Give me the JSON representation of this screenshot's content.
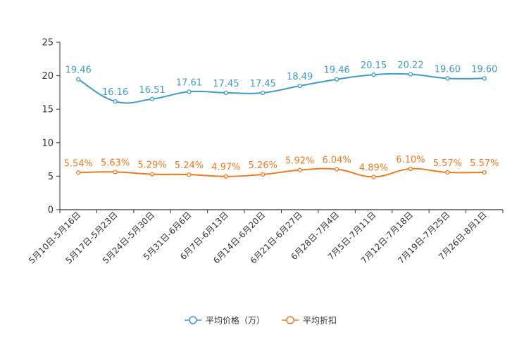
{
  "chart_data": {
    "type": "line",
    "title": "",
    "xlabel": "",
    "ylabel": "",
    "ylim": [
      0,
      25
    ],
    "yticks": [
      0,
      5,
      10,
      15,
      20,
      25
    ],
    "grid": false,
    "legend_position": "bottom-center",
    "categories": [
      "5月10日-5月16日",
      "5月17日-5月23日",
      "5月24日-5月30日",
      "5月31日-6月6日",
      "6月7日-6月13日",
      "6月14日-6月20日",
      "6月21日-6月27日",
      "6月28日-7月4日",
      "7月5日-7月11日",
      "7月12日-7月18日",
      "7月19日-7月25日",
      "7月26日-8月1日"
    ],
    "series": [
      {
        "name": "平均价格（万）",
        "color": "#3d9ccc",
        "values": [
          19.46,
          16.16,
          16.51,
          17.61,
          17.45,
          17.45,
          18.49,
          19.46,
          20.15,
          20.22,
          19.6,
          19.6
        ],
        "labels": [
          "19.46",
          "16.16",
          "16.51",
          "17.61",
          "17.45",
          "17.45",
          "18.49",
          "19.46",
          "20.15",
          "20.22",
          "19.60",
          "19.60"
        ]
      },
      {
        "name": "平均折扣",
        "color": "#f07a1d",
        "values": [
          5.54,
          5.63,
          5.29,
          5.24,
          4.97,
          5.26,
          5.92,
          6.04,
          4.89,
          6.1,
          5.57,
          5.57
        ],
        "labels": [
          "5.54%",
          "5.63%",
          "5.29%",
          "5.24%",
          "4.97%",
          "5.26%",
          "5.92%",
          "6.04%",
          "4.89%",
          "6.10%",
          "5.57%",
          "5.57%"
        ]
      }
    ]
  }
}
